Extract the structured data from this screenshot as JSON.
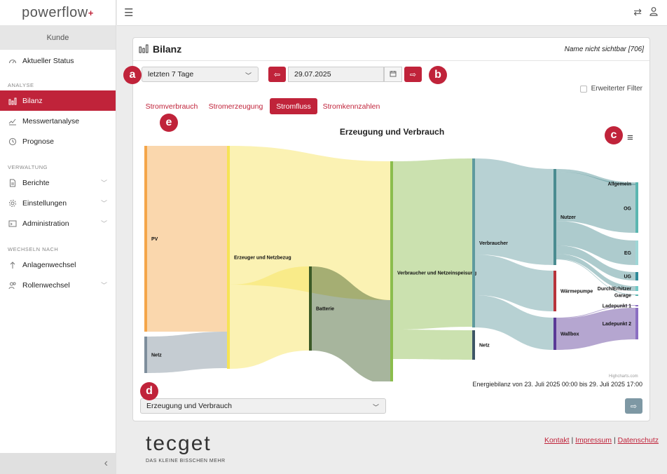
{
  "app": {
    "brand": "powerflow",
    "brand_mark": "+"
  },
  "sidebar": {
    "customer_label": "Kunde",
    "top_item": {
      "label": "Aktueller Status",
      "icon": "gauge-icon"
    },
    "sections": [
      {
        "title": "ANALYSE",
        "items": [
          {
            "label": "Bilanz",
            "icon": "bar-chart-icon",
            "active": true
          },
          {
            "label": "Messwertanalyse",
            "icon": "line-chart-icon"
          },
          {
            "label": "Prognose",
            "icon": "clock-icon"
          }
        ]
      },
      {
        "title": "VERWALTUNG",
        "items": [
          {
            "label": "Berichte",
            "icon": "document-icon",
            "expandable": true
          },
          {
            "label": "Einstellungen",
            "icon": "gear-icon",
            "expandable": true
          },
          {
            "label": "Administration",
            "icon": "terminal-icon",
            "expandable": true
          }
        ]
      },
      {
        "title": "WECHSELN NACH",
        "items": [
          {
            "label": "Anlagenwechsel",
            "icon": "arrow-up-icon"
          },
          {
            "label": "Rollenwechsel",
            "icon": "users-icon",
            "expandable": true
          }
        ]
      }
    ],
    "collapse_icon": "chevron-left-icon"
  },
  "topbar": {
    "menu_icon": "hamburger-icon",
    "swap_icon": "swap-icon",
    "user_icon": "user-icon"
  },
  "card": {
    "title": "Bilanz",
    "name_note": "Name nicht sichtbar [706]",
    "period_select": "letzten 7 Tage",
    "date": "29.07.2025",
    "filter_label": "Erweiterter Filter",
    "tabs": [
      "Stromverbrauch",
      "Stromerzeugung",
      "Stromfluss",
      "Stromkennzahlen"
    ],
    "active_tab": "Stromfluss",
    "chart_title": "Erzeugung und Verbrauch",
    "credits": "Highcharts.com",
    "energy_note": "Energiebilanz von 23. Juli 2025 00:00 bis 29. Juli 2025 17:00",
    "view_select": "Erzeugung und Verbrauch"
  },
  "badges": [
    "a",
    "b",
    "c",
    "d",
    "e"
  ],
  "chart_data": {
    "type": "sankey",
    "nodes": [
      "PV",
      "Netz",
      "Erzeuger und Netzbezug",
      "Batterie",
      "Verbraucher und Netzeinspeisung",
      "Verbraucher",
      "Netz",
      "Nutzer",
      "Wärmepumpe",
      "Wallbox",
      "Allgemein",
      "OG",
      "EG",
      "UG",
      "DurchlErhitzer",
      "Garage",
      "Ladepunkt 1",
      "Ladepunkt 2"
    ],
    "links": [
      {
        "from": "PV",
        "to": "Erzeuger und Netzbezug",
        "value": 265
      },
      {
        "from": "Netz",
        "to": "Erzeuger und Netzbezug",
        "value": 52
      },
      {
        "from": "Erzeuger und Netzbezug",
        "to": "Verbraucher und Netzeinspeisung",
        "value": 198
      },
      {
        "from": "Erzeuger und Netzbezug",
        "to": "Batterie",
        "value": 120
      },
      {
        "from": "Batterie",
        "to": "Verbraucher und Netzeinspeisung",
        "value": 120
      },
      {
        "from": "Verbraucher und Netzeinspeisung",
        "to": "Verbraucher",
        "value": 240
      },
      {
        "from": "Verbraucher und Netzeinspeisung",
        "to": "Netz",
        "value": 42
      },
      {
        "from": "Verbraucher",
        "to": "Nutzer",
        "value": 137
      },
      {
        "from": "Verbraucher",
        "to": "Wärmepumpe",
        "value": 58
      },
      {
        "from": "Verbraucher",
        "to": "Wallbox",
        "value": 46
      },
      {
        "from": "Nutzer",
        "to": "Allgemein",
        "value": 4
      },
      {
        "from": "Nutzer",
        "to": "OG",
        "value": 70
      },
      {
        "from": "Nutzer",
        "to": "EG",
        "value": 35
      },
      {
        "from": "Nutzer",
        "to": "UG",
        "value": 12
      },
      {
        "from": "Nutzer",
        "to": "DurchlErhitzer",
        "value": 7
      },
      {
        "from": "Nutzer",
        "to": "Garage",
        "value": 1
      },
      {
        "from": "Wallbox",
        "to": "Ladepunkt 1",
        "value": 1
      },
      {
        "from": "Wallbox",
        "to": "Ladepunkt 2",
        "value": 45
      }
    ]
  },
  "footer": {
    "brand": "tecget",
    "slogan": "DAS KLEINE BISSCHEN MEHR",
    "links": [
      "Kontakt",
      "Impressum",
      "Datenschutz"
    ]
  }
}
